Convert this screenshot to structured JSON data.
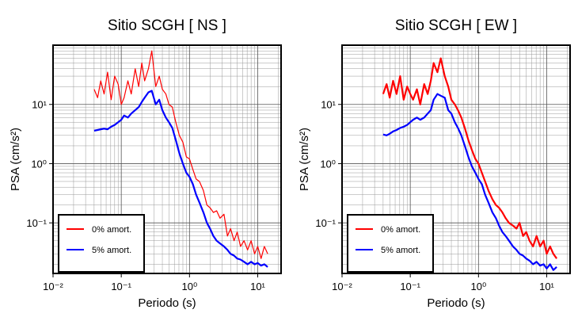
{
  "chart_data": [
    {
      "type": "line",
      "title": "Sitio SCGH [ NS ]",
      "xlabel": "Periodo (s)",
      "ylabel": "PSA (cm/s²)",
      "log_x": true,
      "log_y": true,
      "grid": true,
      "legend": "lower left",
      "xlim": [
        0.01,
        22
      ],
      "ylim": [
        0.014,
        100
      ],
      "xticks": [
        {
          "value": 0.01,
          "label": "10⁻²"
        },
        {
          "value": 0.1,
          "label": "10⁻¹"
        },
        {
          "value": 1,
          "label": "10⁰"
        },
        {
          "value": 10,
          "label": "10¹"
        }
      ],
      "yticks": [
        {
          "value": 0.1,
          "label": "10⁻¹"
        },
        {
          "value": 1,
          "label": "10⁰"
        },
        {
          "value": 10,
          "label": "10¹"
        }
      ],
      "x": [
        0.04,
        0.045,
        0.05,
        0.056,
        0.063,
        0.071,
        0.08,
        0.09,
        0.1,
        0.11,
        0.125,
        0.14,
        0.16,
        0.18,
        0.2,
        0.22,
        0.25,
        0.28,
        0.32,
        0.36,
        0.4,
        0.45,
        0.5,
        0.56,
        0.63,
        0.71,
        0.8,
        0.9,
        1.0,
        1.12,
        1.25,
        1.4,
        1.6,
        1.8,
        2.0,
        2.24,
        2.5,
        2.8,
        3.2,
        3.6,
        4.0,
        4.5,
        5.0,
        5.6,
        6.3,
        7.1,
        8.0,
        9.0,
        10,
        11.2,
        12.5,
        14
      ],
      "series": [
        {
          "name": "0% amort.",
          "color": "#ff0000",
          "width": 1.2,
          "values": [
            18,
            13,
            25,
            15,
            35,
            12,
            30,
            22,
            10,
            13,
            25,
            15,
            40,
            20,
            50,
            25,
            40,
            80,
            20,
            30,
            18,
            15,
            10,
            9,
            5,
            3,
            2.3,
            1.3,
            1.2,
            0.8,
            0.55,
            0.5,
            0.35,
            0.2,
            0.18,
            0.15,
            0.16,
            0.12,
            0.14,
            0.06,
            0.08,
            0.05,
            0.07,
            0.04,
            0.05,
            0.035,
            0.05,
            0.03,
            0.04,
            0.025,
            0.04,
            0.03
          ]
        },
        {
          "name": "5% amort.",
          "color": "#0000ff",
          "width": 2.2,
          "values": [
            3.6,
            3.7,
            3.8,
            3.9,
            3.8,
            4.2,
            4.5,
            5,
            5.5,
            6.5,
            6,
            7,
            8,
            9,
            11,
            13,
            16,
            17,
            10,
            12,
            8,
            6,
            5,
            4,
            2.5,
            1.5,
            1,
            0.7,
            0.6,
            0.45,
            0.3,
            0.22,
            0.15,
            0.1,
            0.08,
            0.06,
            0.05,
            0.045,
            0.04,
            0.035,
            0.03,
            0.028,
            0.025,
            0.024,
            0.022,
            0.02,
            0.022,
            0.02,
            0.021,
            0.019,
            0.02,
            0.018
          ]
        }
      ]
    },
    {
      "type": "line",
      "title": "Sitio SCGH [ EW ]",
      "xlabel": "Periodo (s)",
      "ylabel": "PSA (cm/s²)",
      "log_x": true,
      "log_y": true,
      "grid": true,
      "legend": "lower left",
      "xlim": [
        0.01,
        22
      ],
      "ylim": [
        0.014,
        100
      ],
      "xticks": [
        {
          "value": 0.01,
          "label": "10⁻²"
        },
        {
          "value": 0.1,
          "label": "10⁻¹"
        },
        {
          "value": 1,
          "label": "10⁰"
        },
        {
          "value": 10,
          "label": "10¹"
        }
      ],
      "yticks": [
        {
          "value": 0.1,
          "label": "10⁻¹"
        },
        {
          "value": 1,
          "label": "10⁰"
        },
        {
          "value": 10,
          "label": "10¹"
        }
      ],
      "x": [
        0.04,
        0.045,
        0.05,
        0.056,
        0.063,
        0.071,
        0.08,
        0.09,
        0.1,
        0.11,
        0.125,
        0.14,
        0.16,
        0.18,
        0.2,
        0.22,
        0.25,
        0.28,
        0.32,
        0.36,
        0.4,
        0.45,
        0.5,
        0.56,
        0.63,
        0.71,
        0.8,
        0.9,
        1.0,
        1.12,
        1.25,
        1.4,
        1.6,
        1.8,
        2.0,
        2.24,
        2.5,
        2.8,
        3.2,
        3.6,
        4.0,
        4.5,
        5.0,
        5.6,
        6.3,
        7.1,
        8.0,
        9.0,
        10,
        11.2,
        12.5,
        14
      ],
      "series": [
        {
          "name": "0% amort.",
          "color": "#ff0000",
          "width": 2.2,
          "values": [
            15,
            22,
            13,
            25,
            15,
            30,
            12,
            20,
            15,
            12,
            18,
            10,
            22,
            15,
            25,
            50,
            35,
            60,
            30,
            20,
            12,
            10,
            8,
            6,
            4,
            2.5,
            1.7,
            1.2,
            1.0,
            0.7,
            0.5,
            0.35,
            0.25,
            0.2,
            0.18,
            0.15,
            0.12,
            0.1,
            0.09,
            0.08,
            0.1,
            0.06,
            0.07,
            0.05,
            0.04,
            0.06,
            0.04,
            0.05,
            0.03,
            0.04,
            0.03,
            0.025
          ]
        },
        {
          "name": "5% amort.",
          "color": "#0000ff",
          "width": 2.2,
          "values": [
            3.1,
            3,
            3.2,
            3.5,
            3.7,
            4,
            4.2,
            4.5,
            5,
            5.5,
            6,
            5.5,
            6,
            7,
            8,
            12,
            15,
            14,
            13,
            8,
            7,
            5,
            4,
            3,
            2,
            1.3,
            0.9,
            0.7,
            0.55,
            0.45,
            0.3,
            0.22,
            0.15,
            0.12,
            0.09,
            0.07,
            0.06,
            0.05,
            0.04,
            0.035,
            0.03,
            0.028,
            0.025,
            0.023,
            0.02,
            0.022,
            0.019,
            0.02,
            0.017,
            0.02,
            0.016,
            0.018
          ]
        }
      ]
    }
  ]
}
